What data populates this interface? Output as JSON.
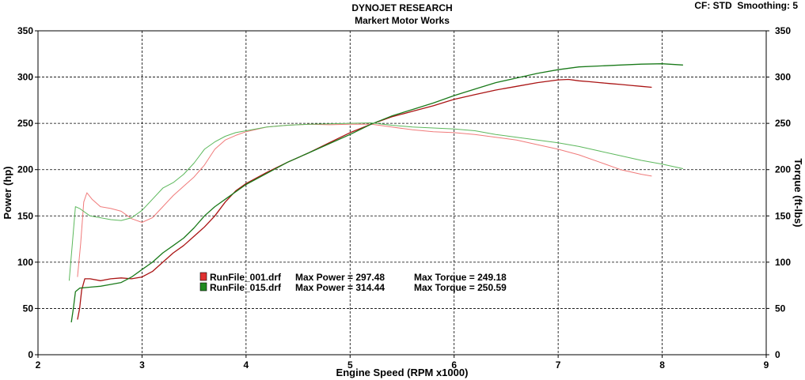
{
  "chart_data": {
    "type": "line",
    "title": "DYNOJET RESEARCH",
    "subtitle": "Markert Motor Works",
    "corner_info": "CF: STD  Smoothing: 5",
    "xlabel": "Engine Speed (RPM x1000)",
    "ylabel": "Power (hp)",
    "y2label": "Torque (ft-lbs)",
    "xlim": [
      2,
      9
    ],
    "ylim": [
      0,
      350
    ],
    "y2lim": [
      0,
      350
    ],
    "x_ticks": [
      "2",
      "3",
      "4",
      "5",
      "6",
      "7",
      "8",
      "9"
    ],
    "y_ticks": [
      "0",
      "50",
      "100",
      "150",
      "200",
      "250",
      "300",
      "350"
    ],
    "y2_ticks": [
      "0",
      "50",
      "100",
      "150",
      "200",
      "250",
      "300",
      "350"
    ],
    "grid": true,
    "legend_position": "lower-center",
    "legend": [
      {
        "file": "RunFile_001.drf",
        "power_label": "Max Power = 297.48",
        "torque_label": "Max Torque = 249.18",
        "color": "#e03030"
      },
      {
        "file": "RunFile_015.drf",
        "power_label": "Max Power = 314.44",
        "torque_label": "Max Torque = 250.59",
        "color": "#1f8a1f"
      }
    ],
    "series": [
      {
        "name": "RunFile_001.drf Power",
        "kind": "power",
        "color": "#aa1414",
        "x": [
          2.38,
          2.4,
          2.42,
          2.45,
          2.5,
          2.6,
          2.7,
          2.8,
          2.9,
          3.0,
          3.1,
          3.2,
          3.3,
          3.4,
          3.5,
          3.6,
          3.7,
          3.8,
          3.9,
          4.0,
          4.2,
          4.4,
          4.6,
          4.8,
          5.0,
          5.2,
          5.4,
          5.6,
          5.8,
          6.0,
          6.2,
          6.4,
          6.6,
          6.8,
          7.0,
          7.1,
          7.2,
          7.3,
          7.4,
          7.5,
          7.6,
          7.7,
          7.8,
          7.9
        ],
        "y": [
          38,
          50,
          70,
          82,
          82,
          80,
          82,
          83,
          82,
          84,
          90,
          100,
          110,
          118,
          128,
          138,
          150,
          165,
          177,
          185,
          197,
          208,
          218,
          229,
          240,
          249,
          257,
          263,
          269,
          276,
          281,
          286,
          290,
          294,
          297,
          297.5,
          296,
          295,
          294,
          293,
          292,
          291,
          290,
          289
        ]
      },
      {
        "name": "RunFile_001.drf Torque",
        "kind": "torque",
        "color": "#f07a7a",
        "x": [
          2.38,
          2.41,
          2.44,
          2.47,
          2.52,
          2.6,
          2.7,
          2.8,
          2.9,
          3.0,
          3.1,
          3.2,
          3.3,
          3.4,
          3.5,
          3.6,
          3.7,
          3.8,
          3.9,
          4.0,
          4.2,
          4.4,
          4.6,
          4.8,
          5.0,
          5.2,
          5.4,
          5.6,
          5.8,
          6.0,
          6.2,
          6.4,
          6.6,
          6.8,
          7.0,
          7.2,
          7.4,
          7.6,
          7.8,
          7.9
        ],
        "y": [
          84,
          120,
          165,
          175,
          168,
          160,
          158,
          155,
          147,
          143,
          148,
          160,
          172,
          182,
          192,
          205,
          222,
          232,
          237,
          241,
          246,
          248,
          249,
          248.5,
          249,
          249.18,
          246,
          243,
          241,
          240,
          238,
          235,
          232,
          227,
          222,
          216,
          208,
          200,
          195,
          193
        ]
      },
      {
        "name": "RunFile_015.drf Power",
        "kind": "power",
        "color": "#1a7a1a",
        "x": [
          2.32,
          2.34,
          2.36,
          2.4,
          2.5,
          2.6,
          2.7,
          2.8,
          2.9,
          3.0,
          3.1,
          3.2,
          3.3,
          3.4,
          3.5,
          3.6,
          3.7,
          3.8,
          3.9,
          4.0,
          4.2,
          4.4,
          4.6,
          4.8,
          5.0,
          5.2,
          5.4,
          5.6,
          5.8,
          6.0,
          6.2,
          6.4,
          6.6,
          6.8,
          7.0,
          7.2,
          7.4,
          7.6,
          7.8,
          8.0,
          8.2
        ],
        "y": [
          35,
          50,
          68,
          72,
          73,
          74,
          76,
          78,
          84,
          92,
          100,
          110,
          118,
          126,
          137,
          150,
          160,
          168,
          176,
          184,
          196,
          208,
          218,
          228,
          238,
          249,
          258,
          265,
          272,
          280,
          287,
          294,
          299,
          304,
          308,
          311,
          312,
          313,
          314,
          314.44,
          313
        ]
      },
      {
        "name": "RunFile_015.drf Torque",
        "kind": "torque",
        "color": "#5cb85c",
        "x": [
          2.3,
          2.33,
          2.36,
          2.4,
          2.5,
          2.6,
          2.7,
          2.8,
          2.9,
          3.0,
          3.1,
          3.2,
          3.3,
          3.4,
          3.5,
          3.6,
          3.7,
          3.8,
          3.9,
          4.0,
          4.2,
          4.4,
          4.6,
          4.8,
          5.0,
          5.2,
          5.4,
          5.6,
          5.8,
          6.0,
          6.2,
          6.4,
          6.6,
          6.8,
          7.0,
          7.2,
          7.4,
          7.6,
          7.8,
          8.0,
          8.2
        ],
        "y": [
          80,
          120,
          160,
          158,
          150,
          148,
          146,
          145,
          148,
          156,
          168,
          180,
          186,
          195,
          207,
          222,
          230,
          236,
          240,
          242,
          246,
          248,
          249,
          249.5,
          250,
          250.59,
          248,
          246,
          245,
          244,
          242,
          238,
          235,
          232,
          229,
          225,
          220,
          215,
          210,
          206,
          201
        ]
      }
    ]
  }
}
